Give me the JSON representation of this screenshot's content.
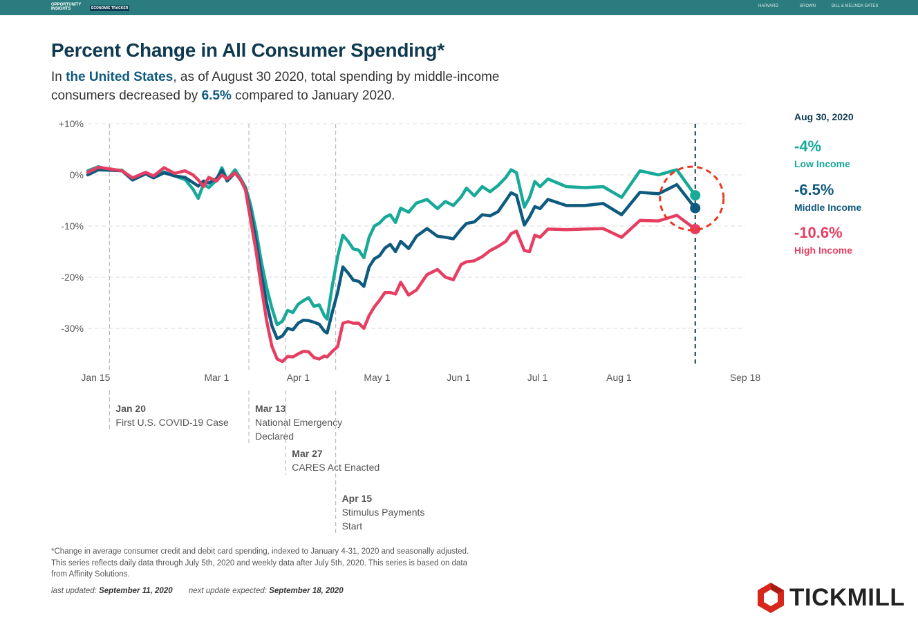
{
  "header": {
    "logo_line1": "OPPORTUNITY",
    "logo_line2": "INSIGHTS",
    "tag": "ECONOMIC TRACKER",
    "partners": [
      "HARVARD",
      "BROWN",
      "BILL & MELINDA GATES"
    ]
  },
  "title": "Percent Change in All Consumer Spending*",
  "subtitle": {
    "p1": "In ",
    "region": "the United States",
    "p2": ", as of August 30 2020, total spending by middle-income consumers decreased by ",
    "pct": "6.5%",
    "p3": " compared to January 2020."
  },
  "side_panel": {
    "date": "Aug 30, 2020",
    "items": [
      {
        "value": "-4%",
        "label": "Low Income",
        "color": "#18a999"
      },
      {
        "value": "-6.5%",
        "label": "Middle Income",
        "color": "#0f5a7f"
      },
      {
        "value": "-10.6%",
        "label": "High Income",
        "color": "#e63e62"
      }
    ]
  },
  "chart_data": {
    "type": "line",
    "x_ticks": [
      {
        "label": "Jan 15",
        "date": "2020-01-15"
      },
      {
        "label": "Mar 1",
        "date": "2020-03-01"
      },
      {
        "label": "Apr 1",
        "date": "2020-04-01"
      },
      {
        "label": "May 1",
        "date": "2020-05-01"
      },
      {
        "label": "Jun 1",
        "date": "2020-06-01"
      },
      {
        "label": "Jul 1",
        "date": "2020-07-01"
      },
      {
        "label": "Aug 1",
        "date": "2020-08-01"
      },
      {
        "label": "Sep 18",
        "date": "2020-09-18"
      }
    ],
    "y_ticks": [
      {
        "label": "+10%",
        "value": 10
      },
      {
        "label": "0%",
        "value": 0
      },
      {
        "label": "-10%",
        "value": -10
      },
      {
        "label": "-20%",
        "value": -20
      },
      {
        "label": "-30%",
        "value": -30
      }
    ],
    "xlim": [
      "2020-01-12",
      "2020-09-18"
    ],
    "ylim": [
      -38,
      10
    ],
    "grid": true,
    "events": [
      {
        "date": "2020-01-20",
        "title": "Jan 20",
        "text": [
          "First U.S. COVID-19 Case"
        ],
        "tier": 0
      },
      {
        "date": "2020-03-13",
        "title": "Mar 13",
        "text": [
          "National Emergency",
          "Declared"
        ],
        "tier": 0
      },
      {
        "date": "2020-03-27",
        "title": "Mar 27",
        "text": [
          "CARES Act Enacted"
        ],
        "tier": 1
      },
      {
        "date": "2020-04-15",
        "title": "Apr 15",
        "text": [
          "Stimulus Payments",
          "Start"
        ],
        "tier": 2
      }
    ],
    "marker_date": "2020-08-30",
    "series": [
      {
        "color": "#18a999",
        "points": [
          [
            "2020-01-12",
            0.8
          ],
          [
            "2020-01-16",
            1.6
          ],
          [
            "2020-01-20",
            1.0
          ],
          [
            "2020-01-25",
            0.9
          ],
          [
            "2020-01-29",
            -0.8
          ],
          [
            "2020-02-03",
            0.4
          ],
          [
            "2020-02-06",
            -0.5
          ],
          [
            "2020-02-10",
            0.6
          ],
          [
            "2020-02-14",
            -0.2
          ],
          [
            "2020-02-18",
            -0.9
          ],
          [
            "2020-02-21",
            -2.8
          ],
          [
            "2020-02-23",
            -4.6
          ],
          [
            "2020-02-25",
            -1.8
          ],
          [
            "2020-02-27",
            -2.5
          ],
          [
            "2020-03-01",
            -1.0
          ],
          [
            "2020-03-03",
            1.4
          ],
          [
            "2020-03-05",
            -1.0
          ],
          [
            "2020-03-08",
            1.0
          ],
          [
            "2020-03-10",
            -0.6
          ],
          [
            "2020-03-12",
            -2.4
          ],
          [
            "2020-03-14",
            -6.0
          ],
          [
            "2020-03-16",
            -11.0
          ],
          [
            "2020-03-18",
            -17.0
          ],
          [
            "2020-03-20",
            -22.0
          ],
          [
            "2020-03-22",
            -26.0
          ],
          [
            "2020-03-24",
            -29.3
          ],
          [
            "2020-03-26",
            -28.6
          ],
          [
            "2020-03-28",
            -26.5
          ],
          [
            "2020-03-30",
            -26.9
          ],
          [
            "2020-04-01",
            -25.3
          ],
          [
            "2020-04-03",
            -24.6
          ],
          [
            "2020-04-05",
            -24.0
          ],
          [
            "2020-04-07",
            -25.7
          ],
          [
            "2020-04-09",
            -25.4
          ],
          [
            "2020-04-11",
            -27.6
          ],
          [
            "2020-04-12",
            -28.2
          ],
          [
            "2020-04-14",
            -21.6
          ],
          [
            "2020-04-16",
            -16.0
          ],
          [
            "2020-04-18",
            -11.8
          ],
          [
            "2020-04-20",
            -13.0
          ],
          [
            "2020-04-22",
            -14.5
          ],
          [
            "2020-04-24",
            -14.7
          ],
          [
            "2020-04-26",
            -16.2
          ],
          [
            "2020-04-28",
            -12.2
          ],
          [
            "2020-04-30",
            -10.0
          ],
          [
            "2020-05-02",
            -9.4
          ],
          [
            "2020-05-04",
            -8.3
          ],
          [
            "2020-05-06",
            -7.8
          ],
          [
            "2020-05-08",
            -9.3
          ],
          [
            "2020-05-10",
            -6.5
          ],
          [
            "2020-05-13",
            -7.3
          ],
          [
            "2020-05-16",
            -5.5
          ],
          [
            "2020-05-20",
            -4.8
          ],
          [
            "2020-05-24",
            -6.6
          ],
          [
            "2020-05-27",
            -5.2
          ],
          [
            "2020-05-30",
            -6.0
          ],
          [
            "2020-06-02",
            -4.3
          ],
          [
            "2020-06-04",
            -2.6
          ],
          [
            "2020-06-07",
            -4.1
          ],
          [
            "2020-06-10",
            -2.3
          ],
          [
            "2020-06-13",
            -3.3
          ],
          [
            "2020-06-16",
            -2.1
          ],
          [
            "2020-06-19",
            -0.5
          ],
          [
            "2020-06-21",
            1.0
          ],
          [
            "2020-06-23",
            0.4
          ],
          [
            "2020-06-26",
            -6.3
          ],
          [
            "2020-06-28",
            -4.4
          ],
          [
            "2020-06-30",
            -1.3
          ],
          [
            "2020-07-02",
            -2.3
          ],
          [
            "2020-07-05",
            -0.8
          ],
          [
            "2020-07-12",
            -2.3
          ],
          [
            "2020-07-19",
            -2.5
          ],
          [
            "2020-07-26",
            -2.3
          ],
          [
            "2020-08-02",
            -4.4
          ],
          [
            "2020-08-09",
            0.8
          ],
          [
            "2020-08-16",
            0.0
          ],
          [
            "2020-08-23",
            1.0
          ],
          [
            "2020-08-30",
            -4.0
          ]
        ]
      },
      {
        "color": "#0f5a7f",
        "points": [
          [
            "2020-01-12",
            0.0
          ],
          [
            "2020-01-16",
            1.0
          ],
          [
            "2020-01-20",
            0.9
          ],
          [
            "2020-01-25",
            0.8
          ],
          [
            "2020-01-29",
            -1.0
          ],
          [
            "2020-02-03",
            0.2
          ],
          [
            "2020-02-06",
            -0.6
          ],
          [
            "2020-02-10",
            0.4
          ],
          [
            "2020-02-14",
            -0.2
          ],
          [
            "2020-02-18",
            -0.5
          ],
          [
            "2020-02-21",
            -1.5
          ],
          [
            "2020-02-23",
            -2.2
          ],
          [
            "2020-02-25",
            -1.2
          ],
          [
            "2020-02-27",
            -1.6
          ],
          [
            "2020-03-01",
            -0.7
          ],
          [
            "2020-03-03",
            0.9
          ],
          [
            "2020-03-05",
            -1.2
          ],
          [
            "2020-03-08",
            0.4
          ],
          [
            "2020-03-10",
            -0.9
          ],
          [
            "2020-03-12",
            -2.8
          ],
          [
            "2020-03-14",
            -7.5
          ],
          [
            "2020-03-16",
            -13.0
          ],
          [
            "2020-03-18",
            -19.5
          ],
          [
            "2020-03-20",
            -25.0
          ],
          [
            "2020-03-22",
            -29.5
          ],
          [
            "2020-03-24",
            -32.0
          ],
          [
            "2020-03-26",
            -31.5
          ],
          [
            "2020-03-28",
            -30.0
          ],
          [
            "2020-03-30",
            -30.3
          ],
          [
            "2020-04-01",
            -29.0
          ],
          [
            "2020-04-03",
            -28.4
          ],
          [
            "2020-04-05",
            -28.5
          ],
          [
            "2020-04-07",
            -28.8
          ],
          [
            "2020-04-09",
            -29.2
          ],
          [
            "2020-04-11",
            -30.6
          ],
          [
            "2020-04-12",
            -30.9
          ],
          [
            "2020-04-14",
            -26.8
          ],
          [
            "2020-04-16",
            -23.0
          ],
          [
            "2020-04-18",
            -18.0
          ],
          [
            "2020-04-20",
            -19.2
          ],
          [
            "2020-04-22",
            -20.6
          ],
          [
            "2020-04-24",
            -20.8
          ],
          [
            "2020-04-26",
            -21.8
          ],
          [
            "2020-04-28",
            -18.0
          ],
          [
            "2020-04-30",
            -16.4
          ],
          [
            "2020-05-02",
            -15.8
          ],
          [
            "2020-05-04",
            -14.3
          ],
          [
            "2020-05-06",
            -13.6
          ],
          [
            "2020-05-08",
            -15.0
          ],
          [
            "2020-05-10",
            -13.0
          ],
          [
            "2020-05-13",
            -14.4
          ],
          [
            "2020-05-16",
            -12.0
          ],
          [
            "2020-05-20",
            -10.5
          ],
          [
            "2020-05-24",
            -12.0
          ],
          [
            "2020-05-27",
            -12.2
          ],
          [
            "2020-05-30",
            -12.5
          ],
          [
            "2020-06-02",
            -10.6
          ],
          [
            "2020-06-04",
            -9.5
          ],
          [
            "2020-06-07",
            -9.2
          ],
          [
            "2020-06-10",
            -7.8
          ],
          [
            "2020-06-13",
            -8.0
          ],
          [
            "2020-06-16",
            -7.2
          ],
          [
            "2020-06-19",
            -5.0
          ],
          [
            "2020-06-21",
            -3.5
          ],
          [
            "2020-06-23",
            -4.0
          ],
          [
            "2020-06-26",
            -9.8
          ],
          [
            "2020-06-28",
            -8.2
          ],
          [
            "2020-06-30",
            -6.2
          ],
          [
            "2020-07-02",
            -6.6
          ],
          [
            "2020-07-05",
            -4.8
          ],
          [
            "2020-07-12",
            -6.0
          ],
          [
            "2020-07-19",
            -6.0
          ],
          [
            "2020-07-26",
            -5.6
          ],
          [
            "2020-08-02",
            -7.8
          ],
          [
            "2020-08-09",
            -3.4
          ],
          [
            "2020-08-16",
            -3.7
          ],
          [
            "2020-08-23",
            -1.9
          ],
          [
            "2020-08-30",
            -6.5
          ]
        ]
      },
      {
        "color": "#e63e62",
        "points": [
          [
            "2020-01-12",
            0.5
          ],
          [
            "2020-01-16",
            1.5
          ],
          [
            "2020-01-20",
            1.2
          ],
          [
            "2020-01-25",
            0.8
          ],
          [
            "2020-01-29",
            -0.6
          ],
          [
            "2020-02-03",
            0.5
          ],
          [
            "2020-02-06",
            -0.2
          ],
          [
            "2020-02-10",
            1.4
          ],
          [
            "2020-02-14",
            0.3
          ],
          [
            "2020-02-18",
            0.8
          ],
          [
            "2020-02-21",
            0.0
          ],
          [
            "2020-02-23",
            -1.0
          ],
          [
            "2020-02-25",
            -2.3
          ],
          [
            "2020-02-27",
            -0.5
          ],
          [
            "2020-03-01",
            -1.2
          ],
          [
            "2020-03-03",
            0.0
          ],
          [
            "2020-03-05",
            -0.8
          ],
          [
            "2020-03-08",
            0.4
          ],
          [
            "2020-03-10",
            -0.8
          ],
          [
            "2020-03-12",
            -3.0
          ],
          [
            "2020-03-14",
            -9.0
          ],
          [
            "2020-03-16",
            -15.0
          ],
          [
            "2020-03-18",
            -22.0
          ],
          [
            "2020-03-20",
            -28.5
          ],
          [
            "2020-03-22",
            -33.5
          ],
          [
            "2020-03-24",
            -36.0
          ],
          [
            "2020-03-26",
            -36.5
          ],
          [
            "2020-03-28",
            -35.5
          ],
          [
            "2020-03-30",
            -35.6
          ],
          [
            "2020-04-01",
            -35.0
          ],
          [
            "2020-04-03",
            -34.5
          ],
          [
            "2020-04-05",
            -34.6
          ],
          [
            "2020-04-07",
            -35.7
          ],
          [
            "2020-04-09",
            -36.0
          ],
          [
            "2020-04-11",
            -35.4
          ],
          [
            "2020-04-12",
            -35.6
          ],
          [
            "2020-04-14",
            -34.5
          ],
          [
            "2020-04-16",
            -33.6
          ],
          [
            "2020-04-18",
            -29.0
          ],
          [
            "2020-04-20",
            -28.7
          ],
          [
            "2020-04-22",
            -29.0
          ],
          [
            "2020-04-24",
            -29.0
          ],
          [
            "2020-04-26",
            -30.0
          ],
          [
            "2020-04-28",
            -27.5
          ],
          [
            "2020-04-30",
            -25.8
          ],
          [
            "2020-05-02",
            -24.5
          ],
          [
            "2020-05-04",
            -23.0
          ],
          [
            "2020-05-06",
            -23.0
          ],
          [
            "2020-05-08",
            -23.3
          ],
          [
            "2020-05-10",
            -21.0
          ],
          [
            "2020-05-13",
            -23.5
          ],
          [
            "2020-05-16",
            -22.5
          ],
          [
            "2020-05-20",
            -19.5
          ],
          [
            "2020-05-24",
            -18.5
          ],
          [
            "2020-05-27",
            -20.0
          ],
          [
            "2020-05-30",
            -20.5
          ],
          [
            "2020-06-02",
            -17.5
          ],
          [
            "2020-06-04",
            -17.0
          ],
          [
            "2020-06-07",
            -16.8
          ],
          [
            "2020-06-10",
            -16.0
          ],
          [
            "2020-06-13",
            -14.8
          ],
          [
            "2020-06-16",
            -14.0
          ],
          [
            "2020-06-19",
            -13.0
          ],
          [
            "2020-06-21",
            -11.5
          ],
          [
            "2020-06-23",
            -11.0
          ],
          [
            "2020-06-26",
            -14.8
          ],
          [
            "2020-06-28",
            -15.0
          ],
          [
            "2020-06-30",
            -11.8
          ],
          [
            "2020-07-02",
            -12.2
          ],
          [
            "2020-07-05",
            -10.6
          ],
          [
            "2020-07-12",
            -10.7
          ],
          [
            "2020-07-19",
            -10.6
          ],
          [
            "2020-07-26",
            -10.5
          ],
          [
            "2020-08-02",
            -12.2
          ],
          [
            "2020-08-09",
            -8.9
          ],
          [
            "2020-08-16",
            -9.0
          ],
          [
            "2020-08-23",
            -7.9
          ],
          [
            "2020-08-30",
            -10.6
          ]
        ]
      }
    ]
  },
  "footnote": {
    "lines": [
      "*Change in average consumer credit and debit card spending, indexed to January 4-31, 2020 and seasonally adjusted.",
      "This series reflects daily data through July 5th, 2020 and weekly data after July 5th, 2020. This series is based on data",
      "from Affinity Solutions."
    ],
    "updated_label": "last updated: ",
    "updated_value": "September 11, 2020",
    "next_label": "next update expected: ",
    "next_value": "September 18, 2020"
  },
  "brand": "TICKMILL",
  "colors": {
    "topbar": "#2b7c7e",
    "title": "#0f3a4f",
    "highlight": "#0f5a7f",
    "circle": "#e8381f"
  }
}
